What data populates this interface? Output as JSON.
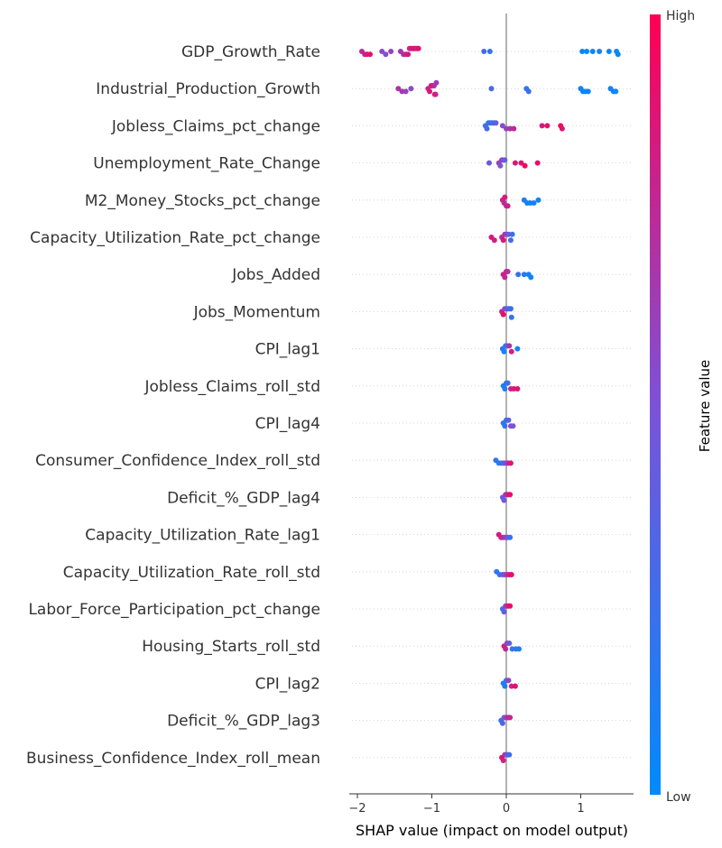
{
  "chart_data": {
    "type": "scatter",
    "subtype": "shap-beeswarm",
    "xlabel": "SHAP value (impact on model output)",
    "xticks": [
      -2,
      -1,
      0,
      1
    ],
    "xlim": [
      -2.1,
      1.65
    ],
    "grid": false,
    "colorbar": {
      "title": "Feature value",
      "high_label": "High",
      "low_label": "Low",
      "low_color": "#008bfb",
      "high_color": "#ff0052"
    },
    "features": [
      {
        "name": "GDP_Growth_Rate",
        "points": [
          {
            "x": -1.94,
            "v": 0.75
          },
          {
            "x": -1.9,
            "v": 0.8
          },
          {
            "x": -1.87,
            "v": 0.85
          },
          {
            "x": -1.83,
            "v": 0.9
          },
          {
            "x": -1.67,
            "v": 0.55
          },
          {
            "x": -1.62,
            "v": 0.5
          },
          {
            "x": -1.55,
            "v": 0.6
          },
          {
            "x": -1.42,
            "v": 0.65
          },
          {
            "x": -1.38,
            "v": 0.7
          },
          {
            "x": -1.35,
            "v": 0.75
          },
          {
            "x": -1.32,
            "v": 0.85
          },
          {
            "x": -1.3,
            "v": 0.7
          },
          {
            "x": -1.28,
            "v": 0.8
          },
          {
            "x": -1.26,
            "v": 0.9
          },
          {
            "x": -1.24,
            "v": 0.85
          },
          {
            "x": -1.22,
            "v": 0.95
          },
          {
            "x": -1.2,
            "v": 0.75
          },
          {
            "x": -1.18,
            "v": 0.9
          },
          {
            "x": -0.3,
            "v": 0.3
          },
          {
            "x": -0.22,
            "v": 0.2
          },
          {
            "x": 1.02,
            "v": 0.05
          },
          {
            "x": 1.08,
            "v": 0.0
          },
          {
            "x": 1.16,
            "v": 0.05
          },
          {
            "x": 1.25,
            "v": 0.1
          },
          {
            "x": 1.38,
            "v": 0.05
          },
          {
            "x": 1.48,
            "v": 0.0
          },
          {
            "x": 1.5,
            "v": 0.05
          }
        ]
      },
      {
        "name": "Industrial_Production_Growth",
        "points": [
          {
            "x": -1.45,
            "v": 0.7
          },
          {
            "x": -1.4,
            "v": 0.65
          },
          {
            "x": -1.35,
            "v": 0.6
          },
          {
            "x": -1.28,
            "v": 0.55
          },
          {
            "x": -1.05,
            "v": 0.8
          },
          {
            "x": -1.03,
            "v": 0.85
          },
          {
            "x": -1.01,
            "v": 0.75
          },
          {
            "x": -0.99,
            "v": 0.9
          },
          {
            "x": -0.97,
            "v": 0.7
          },
          {
            "x": -0.96,
            "v": 0.95
          },
          {
            "x": -0.95,
            "v": 0.8
          },
          {
            "x": -0.94,
            "v": 0.65
          },
          {
            "x": -0.2,
            "v": 0.3
          },
          {
            "x": 0.27,
            "v": 0.2
          },
          {
            "x": 0.3,
            "v": 0.25
          },
          {
            "x": 1.0,
            "v": 0.05
          },
          {
            "x": 1.03,
            "v": 0.1
          },
          {
            "x": 1.06,
            "v": 0.0
          },
          {
            "x": 1.1,
            "v": 0.05
          },
          {
            "x": 1.4,
            "v": 0.1
          },
          {
            "x": 1.44,
            "v": 0.05
          },
          {
            "x": 1.47,
            "v": 0.0
          }
        ]
      },
      {
        "name": "Jobless_Claims_pct_change",
        "points": [
          {
            "x": -0.28,
            "v": 0.25
          },
          {
            "x": -0.26,
            "v": 0.3
          },
          {
            "x": -0.24,
            "v": 0.2
          },
          {
            "x": -0.22,
            "v": 0.35
          },
          {
            "x": -0.2,
            "v": 0.15
          },
          {
            "x": -0.18,
            "v": 0.3
          },
          {
            "x": -0.16,
            "v": 0.25
          },
          {
            "x": -0.14,
            "v": 0.4
          },
          {
            "x": -0.05,
            "v": 0.55
          },
          {
            "x": 0.0,
            "v": 0.6
          },
          {
            "x": 0.05,
            "v": 0.7
          },
          {
            "x": 0.1,
            "v": 0.75
          },
          {
            "x": 0.48,
            "v": 0.85
          },
          {
            "x": 0.55,
            "v": 0.9
          },
          {
            "x": 0.73,
            "v": 0.95
          },
          {
            "x": 0.75,
            "v": 0.9
          }
        ]
      },
      {
        "name": "Unemployment_Rate_Change",
        "points": [
          {
            "x": -0.23,
            "v": 0.45
          },
          {
            "x": -0.1,
            "v": 0.6
          },
          {
            "x": -0.08,
            "v": 0.5
          },
          {
            "x": -0.06,
            "v": 0.65
          },
          {
            "x": -0.04,
            "v": 0.55
          },
          {
            "x": -0.02,
            "v": 0.4
          },
          {
            "x": 0.12,
            "v": 0.85
          },
          {
            "x": 0.2,
            "v": 0.9
          },
          {
            "x": 0.25,
            "v": 0.95
          },
          {
            "x": 0.42,
            "v": 0.9
          }
        ]
      },
      {
        "name": "M2_Money_Stocks_pct_change",
        "points": [
          {
            "x": -0.05,
            "v": 0.8
          },
          {
            "x": -0.03,
            "v": 0.75
          },
          {
            "x": -0.02,
            "v": 0.85
          },
          {
            "x": 0.0,
            "v": 0.7
          },
          {
            "x": 0.02,
            "v": 0.8
          },
          {
            "x": 0.24,
            "v": 0.15
          },
          {
            "x": 0.28,
            "v": 0.1
          },
          {
            "x": 0.32,
            "v": 0.05
          },
          {
            "x": 0.37,
            "v": 0.1
          },
          {
            "x": 0.43,
            "v": 0.05
          }
        ]
      },
      {
        "name": "Capacity_Utilization_Rate_pct_change",
        "points": [
          {
            "x": -0.2,
            "v": 0.85
          },
          {
            "x": -0.16,
            "v": 0.8
          },
          {
            "x": -0.06,
            "v": 0.75
          },
          {
            "x": -0.04,
            "v": 0.85
          },
          {
            "x": -0.02,
            "v": 0.7
          },
          {
            "x": 0.0,
            "v": 0.6
          },
          {
            "x": 0.03,
            "v": 0.45
          },
          {
            "x": 0.06,
            "v": 0.3
          },
          {
            "x": 0.08,
            "v": 0.2
          }
        ]
      },
      {
        "name": "Jobs_Added",
        "points": [
          {
            "x": -0.04,
            "v": 0.85
          },
          {
            "x": -0.02,
            "v": 0.75
          },
          {
            "x": 0.0,
            "v": 0.8
          },
          {
            "x": 0.02,
            "v": 0.7
          },
          {
            "x": 0.16,
            "v": 0.2
          },
          {
            "x": 0.24,
            "v": 0.15
          },
          {
            "x": 0.3,
            "v": 0.1
          },
          {
            "x": 0.33,
            "v": 0.05
          }
        ]
      },
      {
        "name": "Jobs_Momentum",
        "points": [
          {
            "x": -0.06,
            "v": 0.8
          },
          {
            "x": -0.04,
            "v": 0.9
          },
          {
            "x": -0.02,
            "v": 0.6
          },
          {
            "x": 0.0,
            "v": 0.4
          },
          {
            "x": 0.02,
            "v": 0.35
          },
          {
            "x": 0.04,
            "v": 0.3
          },
          {
            "x": 0.06,
            "v": 0.25
          },
          {
            "x": 0.07,
            "v": 0.2
          }
        ]
      },
      {
        "name": "CPI_lag1",
        "points": [
          {
            "x": -0.05,
            "v": 0.15
          },
          {
            "x": -0.03,
            "v": 0.1
          },
          {
            "x": -0.01,
            "v": 0.2
          },
          {
            "x": 0.01,
            "v": 0.25
          },
          {
            "x": 0.04,
            "v": 0.7
          },
          {
            "x": 0.07,
            "v": 0.8
          },
          {
            "x": 0.15,
            "v": 0.1
          }
        ]
      },
      {
        "name": "Jobless_Claims_roll_std",
        "points": [
          {
            "x": -0.04,
            "v": 0.1
          },
          {
            "x": -0.02,
            "v": 0.15
          },
          {
            "x": 0.0,
            "v": 0.2
          },
          {
            "x": 0.02,
            "v": 0.25
          },
          {
            "x": 0.06,
            "v": 0.8
          },
          {
            "x": 0.1,
            "v": 0.85
          },
          {
            "x": 0.15,
            "v": 0.9
          }
        ]
      },
      {
        "name": "CPI_lag4",
        "points": [
          {
            "x": -0.04,
            "v": 0.15
          },
          {
            "x": -0.02,
            "v": 0.2
          },
          {
            "x": 0.0,
            "v": 0.25
          },
          {
            "x": 0.03,
            "v": 0.35
          },
          {
            "x": 0.06,
            "v": 0.55
          },
          {
            "x": 0.09,
            "v": 0.5
          }
        ]
      },
      {
        "name": "Consumer_Confidence_Index_roll_std",
        "points": [
          {
            "x": -0.14,
            "v": 0.2
          },
          {
            "x": -0.1,
            "v": 0.15
          },
          {
            "x": -0.06,
            "v": 0.25
          },
          {
            "x": -0.03,
            "v": 0.4
          },
          {
            "x": 0.0,
            "v": 0.55
          },
          {
            "x": 0.03,
            "v": 0.75
          },
          {
            "x": 0.06,
            "v": 0.85
          }
        ]
      },
      {
        "name": "Deficit_%_GDP_lag4",
        "points": [
          {
            "x": -0.05,
            "v": 0.35
          },
          {
            "x": -0.03,
            "v": 0.45
          },
          {
            "x": -0.01,
            "v": 0.6
          },
          {
            "x": 0.01,
            "v": 0.75
          },
          {
            "x": 0.03,
            "v": 0.8
          },
          {
            "x": 0.05,
            "v": 0.9
          }
        ]
      },
      {
        "name": "Capacity_Utilization_Rate_lag1",
        "points": [
          {
            "x": -0.1,
            "v": 0.85
          },
          {
            "x": -0.07,
            "v": 0.8
          },
          {
            "x": -0.04,
            "v": 0.75
          },
          {
            "x": -0.01,
            "v": 0.6
          },
          {
            "x": 0.02,
            "v": 0.45
          },
          {
            "x": 0.05,
            "v": 0.2
          }
        ]
      },
      {
        "name": "Capacity_Utilization_Rate_roll_std",
        "points": [
          {
            "x": -0.13,
            "v": 0.2
          },
          {
            "x": -0.09,
            "v": 0.25
          },
          {
            "x": -0.05,
            "v": 0.4
          },
          {
            "x": -0.02,
            "v": 0.55
          },
          {
            "x": 0.01,
            "v": 0.7
          },
          {
            "x": 0.04,
            "v": 0.85
          },
          {
            "x": 0.07,
            "v": 0.9
          }
        ]
      },
      {
        "name": "Labor_Force_Participation_pct_change",
        "points": [
          {
            "x": -0.05,
            "v": 0.25
          },
          {
            "x": -0.03,
            "v": 0.4
          },
          {
            "x": -0.01,
            "v": 0.55
          },
          {
            "x": 0.01,
            "v": 0.7
          },
          {
            "x": 0.03,
            "v": 0.85
          },
          {
            "x": 0.05,
            "v": 0.9
          }
        ]
      },
      {
        "name": "Housing_Starts_roll_std",
        "points": [
          {
            "x": -0.03,
            "v": 0.85
          },
          {
            "x": -0.01,
            "v": 0.75
          },
          {
            "x": 0.01,
            "v": 0.6
          },
          {
            "x": 0.04,
            "v": 0.4
          },
          {
            "x": 0.08,
            "v": 0.25
          },
          {
            "x": 0.13,
            "v": 0.15
          },
          {
            "x": 0.17,
            "v": 0.1
          }
        ]
      },
      {
        "name": "CPI_lag2",
        "points": [
          {
            "x": -0.04,
            "v": 0.1
          },
          {
            "x": -0.02,
            "v": 0.15
          },
          {
            "x": 0.0,
            "v": 0.2
          },
          {
            "x": 0.03,
            "v": 0.6
          },
          {
            "x": 0.07,
            "v": 0.8
          },
          {
            "x": 0.12,
            "v": 0.9
          }
        ]
      },
      {
        "name": "Deficit_%_GDP_lag3",
        "points": [
          {
            "x": -0.07,
            "v": 0.25
          },
          {
            "x": -0.05,
            "v": 0.35
          },
          {
            "x": -0.03,
            "v": 0.45
          },
          {
            "x": -0.01,
            "v": 0.55
          },
          {
            "x": 0.01,
            "v": 0.65
          },
          {
            "x": 0.03,
            "v": 0.8
          },
          {
            "x": 0.05,
            "v": 0.75
          }
        ]
      },
      {
        "name": "Business_Confidence_Index_roll_mean",
        "points": [
          {
            "x": -0.06,
            "v": 0.9
          },
          {
            "x": -0.04,
            "v": 0.8
          },
          {
            "x": -0.02,
            "v": 0.7
          },
          {
            "x": 0.0,
            "v": 0.6
          },
          {
            "x": 0.02,
            "v": 0.4
          },
          {
            "x": 0.04,
            "v": 0.25
          }
        ]
      }
    ]
  }
}
